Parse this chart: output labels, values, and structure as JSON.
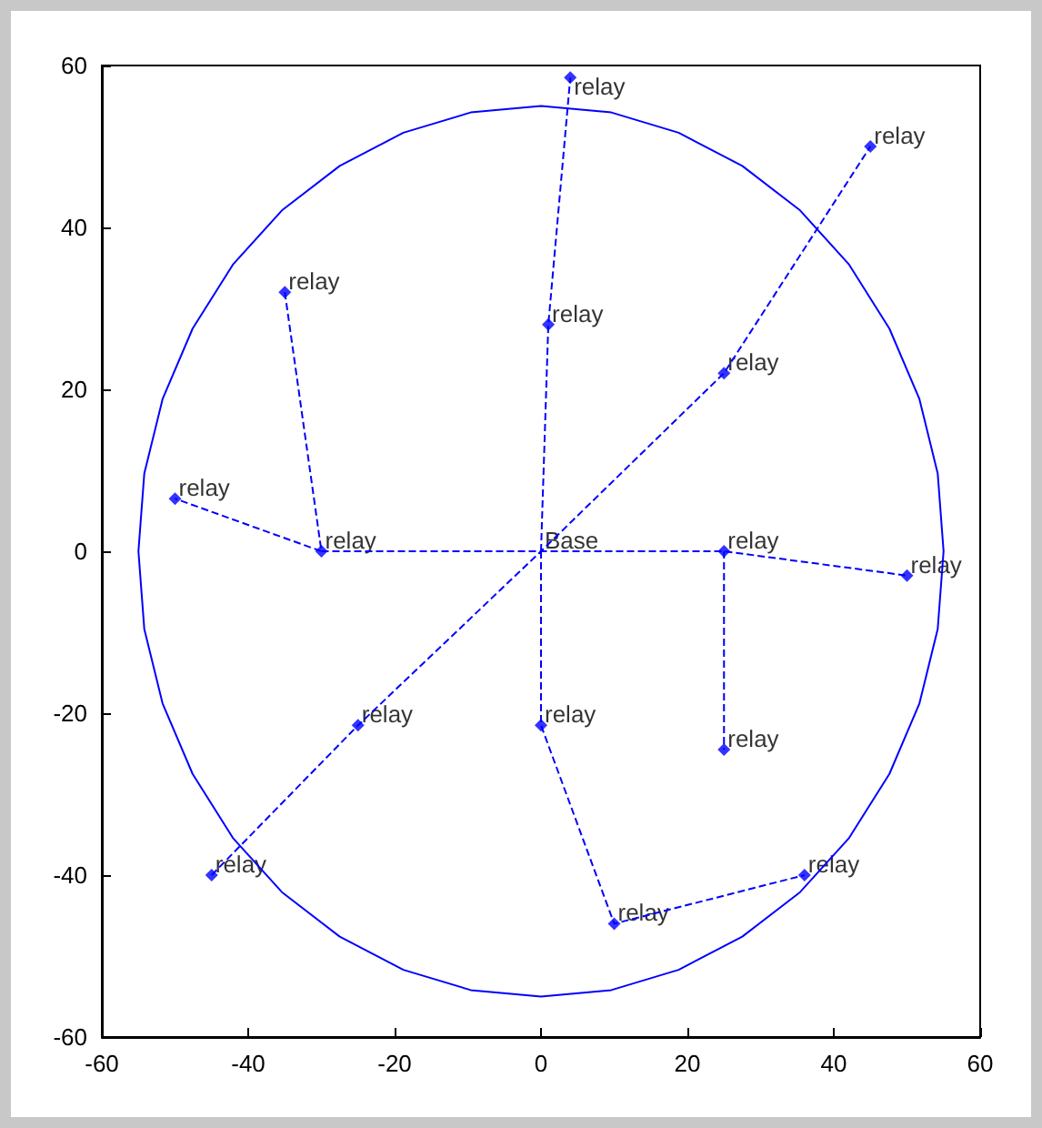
{
  "chart_data": {
    "type": "line",
    "xlim": [
      -60,
      60
    ],
    "ylim": [
      -60,
      60
    ],
    "xticks": [
      -60,
      -40,
      -20,
      0,
      20,
      40,
      60
    ],
    "yticks": [
      -60,
      -40,
      -20,
      0,
      20,
      40,
      60
    ],
    "grid": false,
    "series": [
      {
        "color": "#0000ff",
        "line_style": "dashed",
        "marker": "none",
        "x": [
          0,
          1,
          4,
          null,
          -45,
          -25,
          0,
          25,
          45,
          null,
          -35,
          -30,
          -50,
          null,
          -30,
          0,
          25,
          50,
          null,
          25,
          25,
          null,
          0,
          0,
          10,
          36
        ],
        "values": [
          0,
          28,
          58.5,
          null,
          -40,
          -21.5,
          0,
          22,
          50,
          null,
          32,
          0,
          6.5,
          null,
          0,
          0,
          0,
          -3,
          null,
          0,
          -24.5,
          null,
          0,
          -21.5,
          -46,
          -40
        ]
      },
      {
        "color": "#0000ff",
        "line_style": "solid",
        "marker": "none",
        "x": [
          -55,
          -54.2,
          -51.7,
          -47.6,
          -42.1,
          -35.4,
          -27.5,
          -18.8,
          -9.6,
          0,
          9.6,
          18.8,
          27.5,
          35.4,
          42.1,
          47.6,
          51.7,
          54.2,
          55,
          null,
          -55,
          -54.2,
          -51.7,
          -47.6,
          -42.1,
          -35.4,
          -27.5,
          -18.8,
          -9.6,
          0,
          9.6,
          18.8,
          27.5,
          35.4,
          42.1,
          47.6,
          51.7,
          54.2,
          55
        ],
        "values": [
          0,
          9.6,
          18.8,
          27.5,
          35.4,
          42.1,
          47.6,
          51.7,
          54.2,
          55,
          54.2,
          51.7,
          47.6,
          42.1,
          35.4,
          27.5,
          18.8,
          9.6,
          0,
          null,
          0,
          -9.6,
          -18.8,
          -27.5,
          -35.4,
          -42.1,
          -47.6,
          -51.7,
          -54.2,
          -55,
          -54.2,
          -51.7,
          -47.6,
          -42.1,
          -35.4,
          -27.5,
          -18.8,
          -9.6,
          0
        ]
      },
      {
        "type": "scatter",
        "color": "#0000ff",
        "marker": "diamond",
        "x": [
          4,
          45,
          -35,
          1,
          25,
          -50,
          -30,
          25,
          50,
          -25,
          0,
          25,
          -45,
          10,
          36
        ],
        "values": [
          58.5,
          50,
          32,
          28,
          22,
          6.5,
          0,
          0,
          -3,
          -21.5,
          -21.5,
          -24.5,
          -40,
          -46,
          -40
        ]
      }
    ],
    "annotations": [
      {
        "text": "relay",
        "x": 4,
        "y": 58.5
      },
      {
        "text": "relay",
        "x": 45,
        "y": 50
      },
      {
        "text": "relay",
        "x": -35,
        "y": 32
      },
      {
        "text": "relay",
        "x": 1,
        "y": 28
      },
      {
        "text": "relay",
        "x": 25,
        "y": 22
      },
      {
        "text": "relay",
        "x": -50,
        "y": 6.5
      },
      {
        "text": "relay",
        "x": -30,
        "y": 0
      },
      {
        "text": "Base",
        "x": 0,
        "y": 0
      },
      {
        "text": "relay",
        "x": 25,
        "y": 0
      },
      {
        "text": "relay",
        "x": 50,
        "y": -3
      },
      {
        "text": "relay",
        "x": -25,
        "y": -21.5
      },
      {
        "text": "relay",
        "x": 0,
        "y": -21.5
      },
      {
        "text": "relay",
        "x": 25,
        "y": -24.5
      },
      {
        "text": "relay",
        "x": -45,
        "y": -40
      },
      {
        "text": "relay",
        "x": 10,
        "y": -46
      },
      {
        "text": "relay",
        "x": 36,
        "y": -40
      }
    ]
  }
}
